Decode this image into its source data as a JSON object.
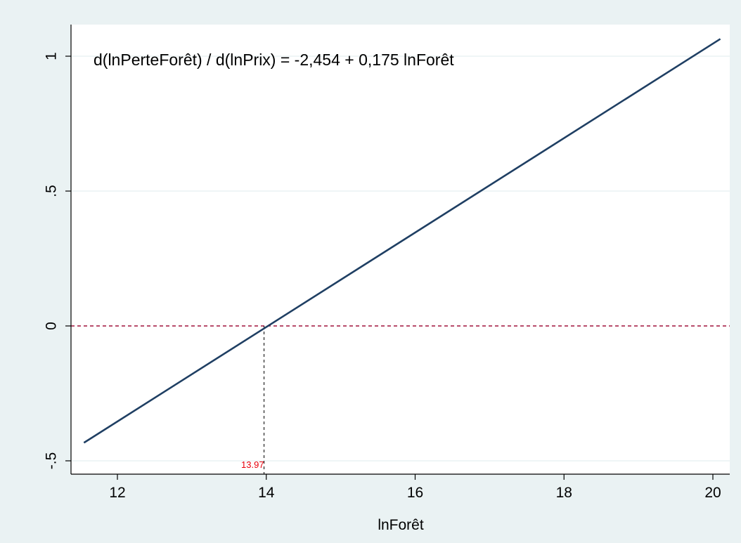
{
  "chart_data": {
    "type": "line",
    "title": "",
    "annotation": "d(lnPerteForêt) / d(lnPrix) = -2,454 + 0,175 lnForêt",
    "xlabel": "lnForêt",
    "ylabel": "",
    "xlim": [
      11.4,
      20.3
    ],
    "ylim": [
      -0.5,
      1.1
    ],
    "xticks": [
      12,
      14,
      16,
      18,
      20
    ],
    "xtick_labels": [
      "12",
      "14",
      "16",
      "18",
      "20"
    ],
    "yticks": [
      -0.5,
      0,
      0.5,
      1
    ],
    "ytick_labels": [
      "-.5",
      "0",
      ".5",
      "1"
    ],
    "grid": "horizontal",
    "series": [
      {
        "x": [
          11.55,
          20.1
        ],
        "y": [
          -0.433,
          1.064
        ],
        "color": "#1f3f63"
      }
    ],
    "reference_lines": {
      "horizontal_y": 0,
      "horizontal_color": "#a0103a",
      "vertical_x": 13.97,
      "vertical_color": "#000000",
      "vertical_label": "13.97",
      "vertical_label_color": "#e8000b"
    },
    "colors": {
      "background": "#eaf2f3",
      "plot_background": "#ffffff",
      "grid": "#eaf2f3",
      "line": "#1f3f63"
    }
  }
}
